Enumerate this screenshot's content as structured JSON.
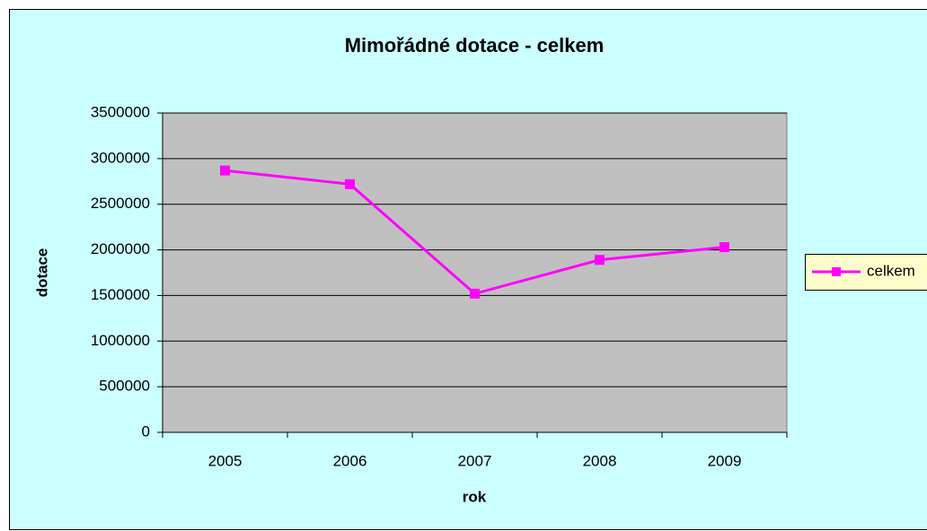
{
  "chart_data": {
    "type": "line",
    "title": "Mimořádné dotace - celkem",
    "x_label": "rok",
    "y_label": "dotace",
    "categories": [
      "2005",
      "2006",
      "2007",
      "2008",
      "2009"
    ],
    "series": [
      {
        "name": "celkem",
        "color": "#ff00ff",
        "values": [
          2870000,
          2720000,
          1520000,
          1890000,
          2030000
        ]
      }
    ],
    "ylim": [
      0,
      3500000
    ],
    "yticks": [
      0,
      500000,
      1000000,
      1500000,
      2000000,
      2500000,
      3000000,
      3500000
    ],
    "grid": true,
    "legend": "right"
  }
}
